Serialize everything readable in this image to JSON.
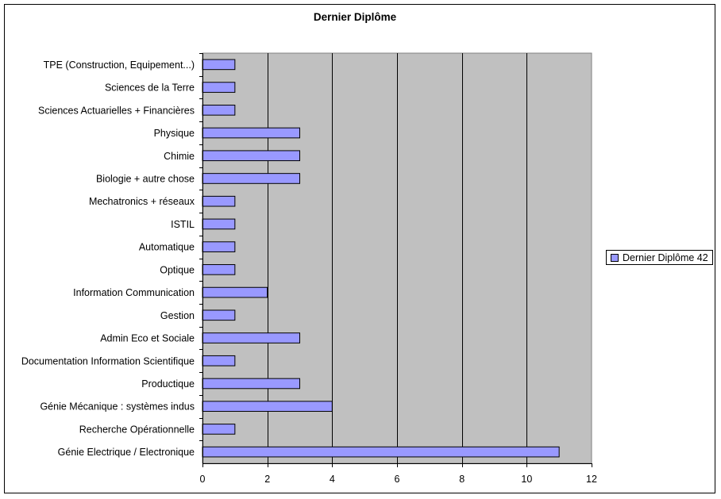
{
  "chart_data": {
    "type": "bar",
    "orientation": "horizontal",
    "title": "Dernier Diplôme",
    "xlabel": "",
    "ylabel": "",
    "xlim": [
      0,
      12
    ],
    "ticks": [
      0,
      2,
      4,
      6,
      8,
      10,
      12
    ],
    "grid": true,
    "legend_position": "right",
    "plot_background": "#c0c0c0",
    "bar_color": "#9999ff",
    "categories": [
      "TPE  (Construction, Equipement...)",
      "Sciences de la Terre",
      "Sciences Actuarielles + Financières",
      "Physique",
      "Chimie",
      "Biologie + autre chose",
      "Mechatronics + réseaux",
      "ISTIL",
      "Automatique",
      "Optique",
      "Information Communication",
      "Gestion",
      "Admin Eco et Sociale",
      "Documentation Information Scientifique",
      "Productique",
      "Génie Mécanique : systèmes indus",
      "Recherche Opérationnelle",
      "Génie Electrique / Electronique"
    ],
    "series": [
      {
        "name": "Dernier Diplôme 42",
        "values": [
          1,
          1,
          1,
          3,
          3,
          3,
          1,
          1,
          1,
          1,
          2,
          1,
          3,
          1,
          3,
          4,
          1,
          11
        ]
      }
    ]
  }
}
